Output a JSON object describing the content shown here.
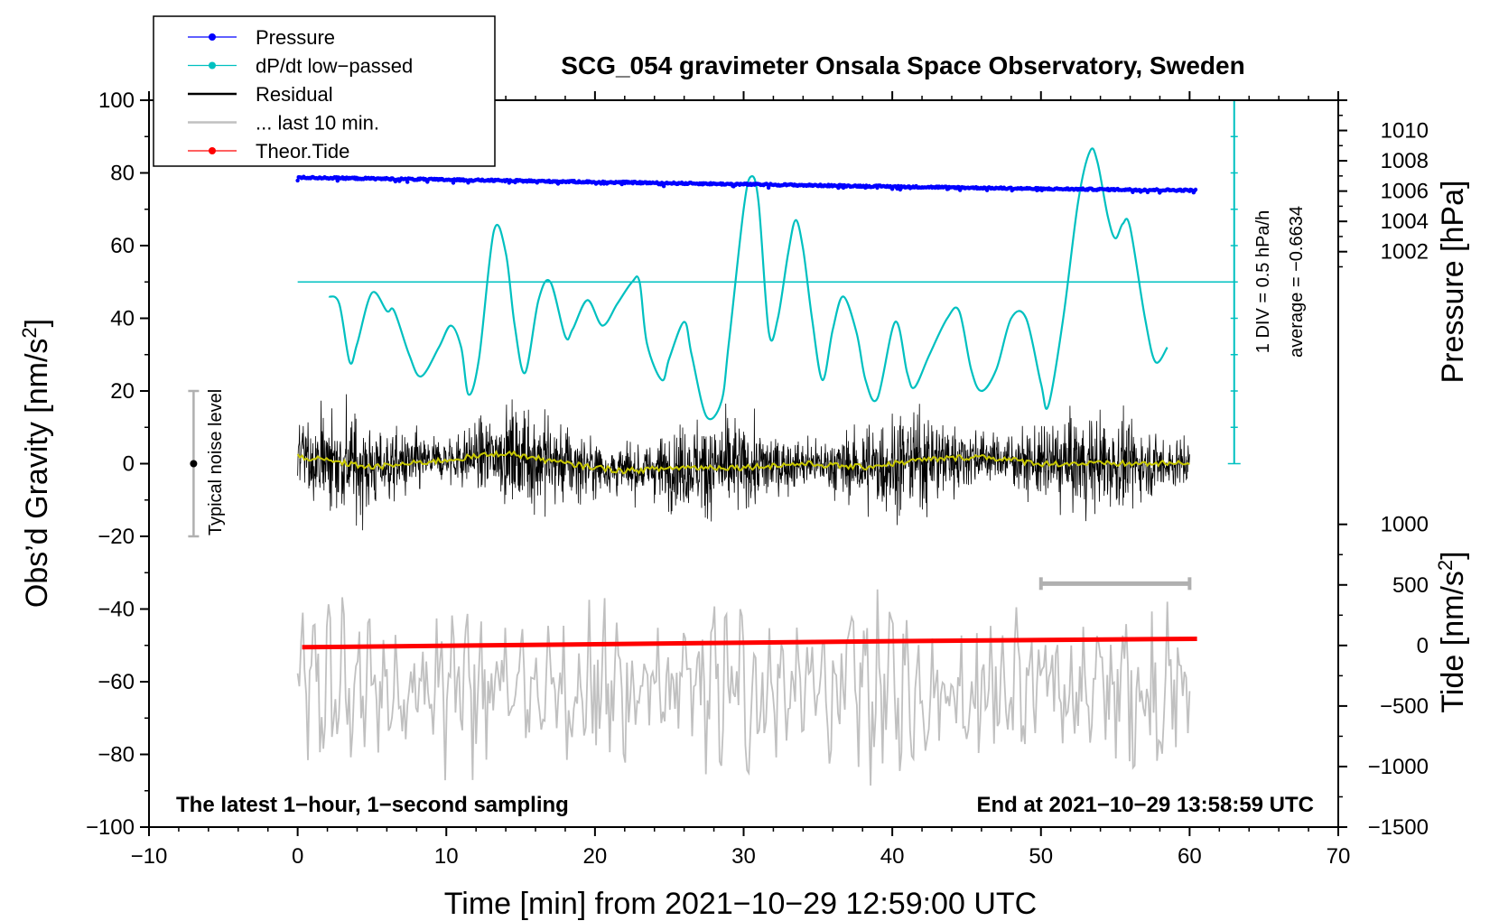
{
  "chart_data": {
    "type": "line",
    "title": "SCG_054 gravimeter Onsala Space Observatory, Sweden",
    "xlabel": "Time [min] from 2021−10−29 12:59:00 UTC",
    "ylabel_left": "Obs’d Gravity [nm/s",
    "ylabel_left_sup": "2",
    "ylabel_left_end": "]",
    "ylabel_right_pressure": "Pressure [hPa]",
    "ylabel_right_tide": "Tide [nm/s",
    "ylabel_right_tide_sup": "2",
    "ylabel_right_tide_end": "]",
    "xlim": [
      -10,
      70
    ],
    "ylim": [
      -100,
      100
    ],
    "x_ticks": [
      {
        "v": -10,
        "label": "−10"
      },
      {
        "v": 0,
        "label": "0"
      },
      {
        "v": 10,
        "label": "10"
      },
      {
        "v": 20,
        "label": "20"
      },
      {
        "v": 30,
        "label": "30"
      },
      {
        "v": 40,
        "label": "40"
      },
      {
        "v": 50,
        "label": "50"
      },
      {
        "v": 60,
        "label": "60"
      },
      {
        "v": 70,
        "label": "70"
      }
    ],
    "y_ticks": [
      {
        "v": 100,
        "label": "100"
      },
      {
        "v": 80,
        "label": "80"
      },
      {
        "v": 60,
        "label": "60"
      },
      {
        "v": 40,
        "label": "40"
      },
      {
        "v": 20,
        "label": "20"
      },
      {
        "v": 0,
        "label": "0"
      },
      {
        "v": -20,
        "label": "−20"
      },
      {
        "v": -40,
        "label": "−40"
      },
      {
        "v": -60,
        "label": "−60"
      },
      {
        "v": -80,
        "label": "−80"
      },
      {
        "v": -100,
        "label": "−100"
      }
    ],
    "pressure_axis": {
      "gravity_span": [
        50,
        100
      ],
      "ylim": [
        1000,
        1012
      ],
      "ticks": [
        {
          "v": 1002,
          "label": "1002"
        },
        {
          "v": 1004,
          "label": "1004"
        },
        {
          "v": 1006,
          "label": "1006"
        },
        {
          "v": 1008,
          "label": "1008"
        },
        {
          "v": 1010,
          "label": "1010"
        }
      ]
    },
    "tide_axis": {
      "gravity_span": [
        -100,
        -16.7
      ],
      "ylim": [
        -1500,
        1000
      ],
      "ticks": [
        {
          "v": 1000,
          "label": "1000"
        },
        {
          "v": 500,
          "label": "500"
        },
        {
          "v": 0,
          "label": "0"
        },
        {
          "v": -500,
          "label": "−500"
        },
        {
          "v": -1000,
          "label": "−1000"
        },
        {
          "v": -1500,
          "label": "−1500"
        }
      ]
    },
    "dpdt_scale": {
      "x": 63,
      "zero_gravity": 50,
      "bottom_gravity": 0,
      "top_gravity": 100,
      "label_div": "1 DIV = 0.5 hPa/h",
      "label_avg": "average = −0.6634"
    },
    "noise_bar": {
      "x": -7,
      "range": [
        -20,
        20
      ],
      "label": "Typical noise level"
    },
    "last10_bar": {
      "x_range": [
        50,
        60
      ],
      "y": -33
    },
    "series": [
      {
        "name": "Pressure",
        "color": "#0000ff",
        "style": "dots",
        "units": "hPa",
        "x_range": [
          0,
          60.4
        ],
        "points": [
          [
            0,
            1006.9
          ],
          [
            10,
            1006.75
          ],
          [
            20,
            1006.6
          ],
          [
            30,
            1006.45
          ],
          [
            40,
            1006.3
          ],
          [
            50,
            1006.15
          ],
          [
            60.4,
            1006.05
          ]
        ]
      },
      {
        "name": "dP/dt low−passed",
        "color": "#00c0c0",
        "style": "line",
        "units": "gravity-axis",
        "points": [
          [
            2.1,
            46
          ],
          [
            2.8,
            44
          ],
          [
            3.5,
            28
          ],
          [
            4,
            33
          ],
          [
            5,
            47
          ],
          [
            6,
            42
          ],
          [
            6.5,
            42
          ],
          [
            7.5,
            30
          ],
          [
            8.3,
            24
          ],
          [
            9.5,
            32
          ],
          [
            10.3,
            38
          ],
          [
            11,
            32
          ],
          [
            11.5,
            19
          ],
          [
            12.2,
            29
          ],
          [
            13.2,
            64
          ],
          [
            14,
            58
          ],
          [
            14.6,
            38
          ],
          [
            15.3,
            25
          ],
          [
            16.2,
            45
          ],
          [
            17,
            50
          ],
          [
            18,
            35
          ],
          [
            18.5,
            37
          ],
          [
            19.5,
            45
          ],
          [
            20.5,
            38
          ],
          [
            21.5,
            44
          ],
          [
            22.5,
            50
          ],
          [
            23,
            50
          ],
          [
            23.5,
            33
          ],
          [
            24.5,
            23
          ],
          [
            25,
            29
          ],
          [
            26,
            39
          ],
          [
            26.5,
            30
          ],
          [
            27.5,
            13
          ],
          [
            28.5,
            17
          ],
          [
            29,
            33
          ],
          [
            30,
            70
          ],
          [
            30.5,
            79
          ],
          [
            31,
            72
          ],
          [
            31.7,
            36
          ],
          [
            32.3,
            40
          ],
          [
            33,
            58
          ],
          [
            33.5,
            67
          ],
          [
            34,
            59
          ],
          [
            34.6,
            40
          ],
          [
            35.3,
            23
          ],
          [
            36,
            37
          ],
          [
            36.7,
            46
          ],
          [
            37.6,
            36
          ],
          [
            38.2,
            23
          ],
          [
            39,
            18
          ],
          [
            40.2,
            39
          ],
          [
            41,
            25
          ],
          [
            41.5,
            21
          ],
          [
            42.5,
            30
          ],
          [
            43.7,
            40
          ],
          [
            44.5,
            42
          ],
          [
            45.3,
            26
          ],
          [
            46,
            20
          ],
          [
            47,
            26
          ],
          [
            48,
            40
          ],
          [
            49,
            40
          ],
          [
            50,
            22
          ],
          [
            50.5,
            16
          ],
          [
            51.5,
            40
          ],
          [
            52.5,
            72
          ],
          [
            53.3,
            86
          ],
          [
            53.8,
            83
          ],
          [
            54.5,
            68
          ],
          [
            55,
            62
          ],
          [
            55.5,
            66
          ],
          [
            56,
            65
          ],
          [
            57,
            40
          ],
          [
            57.7,
            28
          ],
          [
            58.5,
            32
          ]
        ]
      },
      {
        "name": "Residual",
        "color": "#000000",
        "style": "noise",
        "x_range": [
          0,
          60
        ],
        "std": 9,
        "yellow_mean_color": "#c8c800",
        "mean_points": [
          [
            0,
            2
          ],
          [
            5,
            -1
          ],
          [
            10,
            1
          ],
          [
            14,
            3
          ],
          [
            18,
            0
          ],
          [
            22,
            -2
          ],
          [
            26,
            -1
          ],
          [
            30,
            -1
          ],
          [
            34,
            0
          ],
          [
            38,
            -1
          ],
          [
            42,
            1
          ],
          [
            46,
            2
          ],
          [
            50,
            0
          ],
          [
            55,
            0
          ],
          [
            60,
            0
          ]
        ]
      },
      {
        "name": "... last 10 min.",
        "color": "#c0c0c0",
        "style": "oscillation",
        "x_range": [
          0,
          60
        ],
        "center": -62,
        "amplitude": 18
      },
      {
        "name": "Theor.Tide",
        "color": "#ff0000",
        "style": "line",
        "units": "nm/s2",
        "points": [
          [
            0.3,
            -15
          ],
          [
            20,
            10
          ],
          [
            40,
            35
          ],
          [
            60.5,
            55
          ]
        ]
      }
    ],
    "legend": {
      "position": "top-left",
      "entries": [
        {
          "label": "Pressure",
          "color": "#0000ff",
          "marker": "dot"
        },
        {
          "label": "dP/dt low−passed",
          "color": "#00c0c0",
          "marker": "dot"
        },
        {
          "label": "Residual",
          "color": "#000000",
          "marker": "none"
        },
        {
          "label": "... last 10 min.",
          "color": "#c0c0c0",
          "marker": "none"
        },
        {
          "label": "Theor.Tide",
          "color": "#ff0000",
          "marker": "dot"
        }
      ]
    },
    "annotations": {
      "bottom_left": "The latest 1−hour, 1−second sampling",
      "bottom_right": "End at 2021−10−29 13:58:59 UTC"
    }
  }
}
